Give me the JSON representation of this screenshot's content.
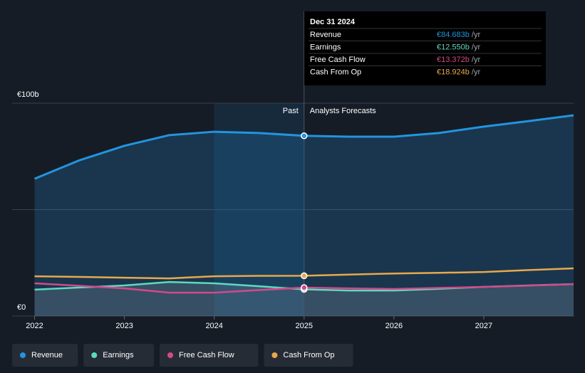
{
  "chart_data": {
    "type": "line",
    "x": [
      2022,
      2022.5,
      2023,
      2023.5,
      2024,
      2024.5,
      2025,
      2025.5,
      2026,
      2026.5,
      2027,
      2027.5,
      2028
    ],
    "series": [
      {
        "name": "Revenue",
        "color": "#2394df",
        "values": [
          64.5,
          73.2,
          80,
          85,
          86.6,
          86,
          84.683,
          84.3,
          84.3,
          86,
          89,
          91.6,
          94.3
        ]
      },
      {
        "name": "Earnings",
        "color": "#5fd9bd",
        "values": [
          12.4,
          13.4,
          14.4,
          16,
          15.4,
          14,
          12.55,
          12,
          12,
          12.8,
          13.7,
          14.4,
          15
        ]
      },
      {
        "name": "Free Cash Flow",
        "color": "#d4498a",
        "values": [
          15.4,
          14.2,
          13,
          11,
          11,
          12.2,
          13.372,
          13,
          12.7,
          13.2,
          13.7,
          14.3,
          15
        ]
      },
      {
        "name": "Cash From Op",
        "color": "#e9a84c",
        "values": [
          18.7,
          18.4,
          18,
          17.7,
          18.7,
          18.9,
          18.924,
          19.5,
          20,
          20.3,
          20.7,
          21.6,
          22.4
        ]
      }
    ],
    "xlim": [
      2021.75,
      2028
    ],
    "xticks": [
      2022,
      2023,
      2024,
      2025,
      2026,
      2027
    ],
    "ylim": [
      0,
      100
    ],
    "yticks": [
      {
        "value": 0,
        "label": "€0"
      },
      {
        "value": 100,
        "label": "€100b"
      }
    ],
    "ygrid": [
      0,
      50,
      100
    ],
    "past_label": "Past",
    "forecast_label": "Analysts Forecasts",
    "past_start": 2024,
    "divider": 2025,
    "tooltip": {
      "title": "Dec 31 2024",
      "x": 2025,
      "unit": "/yr",
      "rows": [
        {
          "value": 84.683,
          "value_label": "€84.683b"
        },
        {
          "value": 12.55,
          "value_label": "€12.550b"
        },
        {
          "value": 13.372,
          "value_label": "€13.372b"
        },
        {
          "value": 18.924,
          "value_label": "€18.924b"
        }
      ]
    }
  }
}
